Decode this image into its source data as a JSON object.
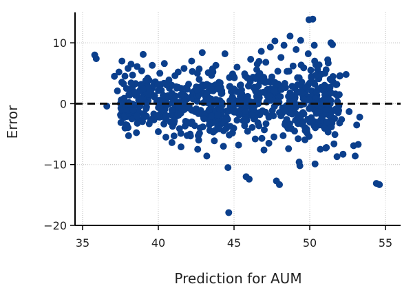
{
  "chart_data": {
    "type": "scatter",
    "title": "",
    "xlabel": "Prediction for AUM",
    "ylabel": "Error",
    "xlim": [
      34.5,
      56
    ],
    "ylim": [
      -20,
      15
    ],
    "x_ticks": [
      35,
      40,
      45,
      50,
      55
    ],
    "y_ticks": [
      -20,
      -10,
      0,
      10
    ],
    "x_tick_labels": [
      "35",
      "40",
      "45",
      "50",
      "55"
    ],
    "y_tick_labels": [
      "−20",
      "−10",
      "0",
      "10"
    ],
    "grid": true,
    "reference_line": {
      "y": 0,
      "style": "dashed",
      "color": "#111111"
    },
    "marker_color": "#0b3f8c",
    "series": [
      {
        "points": [
          [
            35.8,
            8.0
          ],
          [
            35.9,
            7.4
          ],
          [
            36.6,
            -0.4
          ],
          [
            37.1,
            4.5
          ],
          [
            37.3,
            2.1
          ],
          [
            37.4,
            5.2
          ],
          [
            37.6,
            7.0
          ],
          [
            37.7,
            -0.1
          ],
          [
            37.8,
            -4.0
          ],
          [
            37.9,
            2.5
          ],
          [
            38.0,
            5.8
          ],
          [
            38.1,
            1.4
          ],
          [
            38.2,
            6.5
          ],
          [
            38.3,
            4.7
          ],
          [
            38.4,
            -1.2
          ],
          [
            38.5,
            3.3
          ],
          [
            38.6,
            6.1
          ],
          [
            38.7,
            0.6
          ],
          [
            38.8,
            -2.6
          ],
          [
            38.9,
            5.4
          ],
          [
            39.0,
            8.1
          ],
          [
            39.1,
            2.8
          ],
          [
            39.2,
            -0.8
          ],
          [
            39.3,
            4.2
          ],
          [
            39.4,
            -3.3
          ],
          [
            39.5,
            1.9
          ],
          [
            39.6,
            6.3
          ],
          [
            39.7,
            -1.7
          ],
          [
            39.8,
            3.6
          ],
          [
            39.9,
            0.3
          ],
          [
            40.0,
            -4.6
          ],
          [
            40.1,
            5.0
          ],
          [
            40.2,
            2.2
          ],
          [
            40.3,
            -2.1
          ],
          [
            40.4,
            6.6
          ],
          [
            40.5,
            -5.5
          ],
          [
            40.6,
            1.0
          ],
          [
            40.7,
            3.9
          ],
          [
            40.8,
            -3.0
          ],
          [
            40.9,
            -6.4
          ],
          [
            41.0,
            0.4
          ],
          [
            41.1,
            4.6
          ],
          [
            41.2,
            -1.5
          ],
          [
            41.3,
            2.7
          ],
          [
            41.4,
            -4.1
          ],
          [
            41.5,
            -7.1
          ],
          [
            41.6,
            1.6
          ],
          [
            41.7,
            5.8
          ],
          [
            41.8,
            -2.9
          ],
          [
            41.9,
            -0.6
          ],
          [
            42.0,
            3.2
          ],
          [
            42.1,
            -5.0
          ],
          [
            42.2,
            7.0
          ],
          [
            42.3,
            0.9
          ],
          [
            42.4,
            -3.6
          ],
          [
            42.5,
            2.0
          ],
          [
            42.6,
            -7.5
          ],
          [
            42.7,
            4.0
          ],
          [
            42.8,
            -1.1
          ],
          [
            42.9,
            8.4
          ],
          [
            43.0,
            -2.4
          ],
          [
            43.1,
            1.3
          ],
          [
            43.2,
            -8.6
          ],
          [
            43.3,
            5.1
          ],
          [
            43.4,
            -4.4
          ],
          [
            43.5,
            0.1
          ],
          [
            43.6,
            2.9
          ],
          [
            43.7,
            -6.1
          ],
          [
            43.8,
            6.3
          ],
          [
            43.9,
            -0.9
          ],
          [
            44.0,
            3.5
          ],
          [
            44.1,
            -3.4
          ],
          [
            44.2,
            1.7
          ],
          [
            44.3,
            -7.0
          ],
          [
            44.4,
            8.2
          ],
          [
            44.5,
            -2.2
          ],
          [
            44.6,
            -10.5
          ],
          [
            44.65,
            -17.9
          ],
          [
            44.7,
            4.3
          ],
          [
            44.8,
            0.6
          ],
          [
            44.9,
            -4.8
          ],
          [
            45.0,
            2.4
          ],
          [
            45.1,
            -1.4
          ],
          [
            45.2,
            6.0
          ],
          [
            45.3,
            -6.8
          ],
          [
            45.4,
            3.0
          ],
          [
            45.5,
            -0.4
          ],
          [
            45.6,
            -2.8
          ],
          [
            45.7,
            4.9
          ],
          [
            45.8,
            -12.0
          ],
          [
            45.9,
            1.2
          ],
          [
            46.0,
            -12.4
          ],
          [
            46.1,
            7.3
          ],
          [
            46.2,
            -3.9
          ],
          [
            46.3,
            2.6
          ],
          [
            46.4,
            -5.8
          ],
          [
            46.5,
            5.6
          ],
          [
            46.6,
            0.0
          ],
          [
            46.7,
            -1.8
          ],
          [
            46.8,
            8.6
          ],
          [
            46.9,
            3.7
          ],
          [
            47.0,
            -4.3
          ],
          [
            47.1,
            6.8
          ],
          [
            47.2,
            1.5
          ],
          [
            47.3,
            -6.5
          ],
          [
            47.4,
            9.3
          ],
          [
            47.5,
            4.4
          ],
          [
            47.6,
            -2.0
          ],
          [
            47.7,
            10.3
          ],
          [
            47.8,
            -12.7
          ],
          [
            47.9,
            2.1
          ],
          [
            48.0,
            -13.3
          ],
          [
            48.1,
            7.6
          ],
          [
            48.2,
            -0.7
          ],
          [
            48.3,
            9.6
          ],
          [
            48.4,
            -3.1
          ],
          [
            48.5,
            5.3
          ],
          [
            48.6,
            -7.4
          ],
          [
            48.7,
            11.1
          ],
          [
            48.8,
            0.8
          ],
          [
            48.9,
            6.2
          ],
          [
            49.0,
            -4.5
          ],
          [
            49.1,
            8.9
          ],
          [
            49.2,
            3.1
          ],
          [
            49.3,
            -9.6
          ],
          [
            49.35,
            -10.2
          ],
          [
            49.4,
            10.4
          ],
          [
            49.5,
            -1.6
          ],
          [
            49.6,
            5.9
          ],
          [
            49.7,
            1.8
          ],
          [
            49.8,
            -4.2
          ],
          [
            49.9,
            8.2
          ],
          [
            49.95,
            13.8
          ],
          [
            50.0,
            3.4
          ],
          [
            50.1,
            -2.3
          ],
          [
            50.2,
            13.9
          ],
          [
            50.3,
            9.6
          ],
          [
            50.35,
            -9.9
          ],
          [
            50.4,
            6.4
          ],
          [
            50.5,
            0.2
          ],
          [
            50.6,
            4.1
          ],
          [
            50.7,
            -7.5
          ],
          [
            50.8,
            2.3
          ],
          [
            50.9,
            -1.0
          ],
          [
            51.0,
            5.0
          ],
          [
            51.1,
            -7.2
          ],
          [
            51.2,
            1.1
          ],
          [
            51.3,
            -3.7
          ],
          [
            51.4,
            10.0
          ],
          [
            51.5,
            9.7
          ],
          [
            51.6,
            -6.6
          ],
          [
            51.7,
            1.6
          ],
          [
            51.8,
            -8.7
          ],
          [
            51.9,
            -0.5
          ],
          [
            52.0,
            4.6
          ],
          [
            52.1,
            -2.6
          ],
          [
            52.2,
            -8.3
          ],
          [
            52.4,
            4.8
          ],
          [
            52.6,
            -1.3
          ],
          [
            52.9,
            -6.9
          ],
          [
            53.0,
            -8.6
          ],
          [
            53.1,
            -3.5
          ],
          [
            53.2,
            -6.7
          ],
          [
            53.3,
            -2.2
          ],
          [
            54.4,
            -13.1
          ],
          [
            54.6,
            -13.3
          ]
        ]
      }
    ]
  }
}
